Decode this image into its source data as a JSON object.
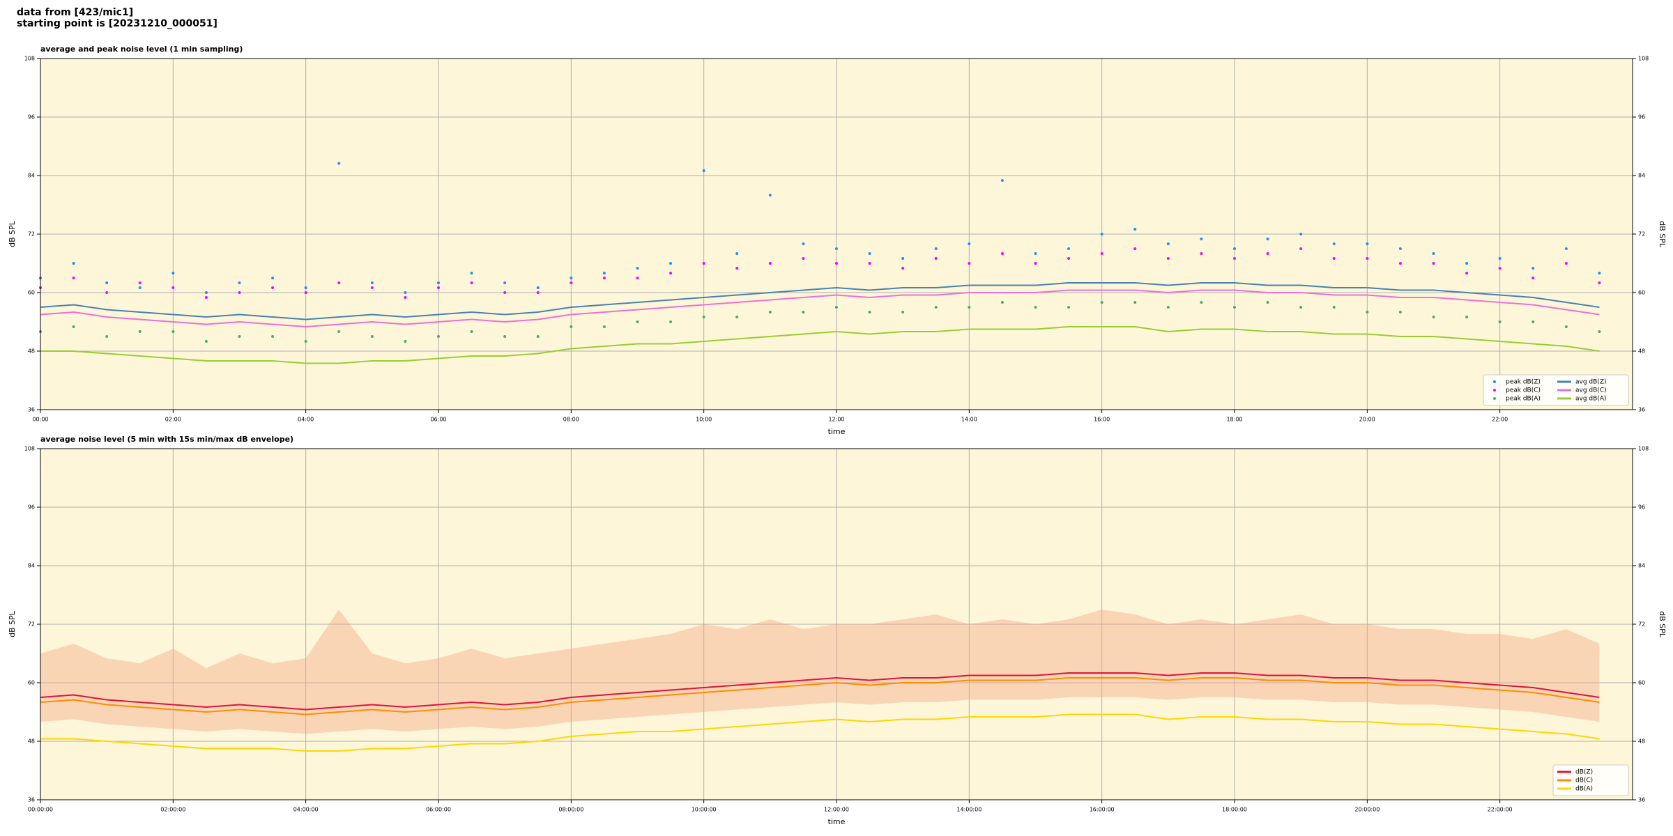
{
  "header": {
    "line1": "data from [423/mic1]",
    "line2": "starting point is [20231210_000051]"
  },
  "chart_data": [
    {
      "type": "line",
      "title": "average and peak noise level (1 min sampling)",
      "xlabel": "time",
      "ylabel": "dB SPL",
      "x": [
        0,
        0.5,
        1,
        1.5,
        2,
        2.5,
        3,
        3.5,
        4,
        4.5,
        5,
        5.5,
        6,
        6.5,
        7,
        7.5,
        8,
        8.5,
        9,
        9.5,
        10,
        10.5,
        11,
        11.5,
        12,
        12.5,
        13,
        13.5,
        14,
        14.5,
        15,
        15.5,
        16,
        16.5,
        17,
        17.5,
        18,
        18.5,
        19,
        19.5,
        20,
        20.5,
        21,
        21.5,
        22,
        22.5,
        23,
        23.5
      ],
      "xlim": [
        0,
        24
      ],
      "xticks": [
        {
          "value": 0,
          "label": "00:00"
        },
        {
          "value": 2,
          "label": "02:00"
        },
        {
          "value": 4,
          "label": "04:00"
        },
        {
          "value": 6,
          "label": "06:00"
        },
        {
          "value": 8,
          "label": "08:00"
        },
        {
          "value": 10,
          "label": "10:00"
        },
        {
          "value": 12,
          "label": "12:00"
        },
        {
          "value": 14,
          "label": "14:00"
        },
        {
          "value": 16,
          "label": "16:00"
        },
        {
          "value": 18,
          "label": "18:00"
        },
        {
          "value": 20,
          "label": "20:00"
        },
        {
          "value": 22,
          "label": "22:00"
        }
      ],
      "ylim": [
        36,
        108
      ],
      "yticks": [
        36,
        48,
        60,
        72,
        84,
        96,
        108
      ],
      "grid": true,
      "legend": "lower right",
      "legend_columns": 2,
      "series": [
        {
          "name": "peak dB(Z)",
          "color": "#1e90ff",
          "style": "points",
          "values": [
            63,
            66,
            62,
            61,
            64,
            60,
            62,
            63,
            61,
            86.5,
            62,
            60,
            62,
            64,
            62,
            61,
            63,
            64,
            65,
            66,
            85,
            68,
            80,
            70,
            69,
            68,
            67,
            69,
            70,
            83,
            68,
            69,
            72,
            73,
            70,
            71,
            69,
            71,
            72,
            70,
            70,
            69,
            68,
            66,
            67,
            65,
            69,
            64
          ]
        },
        {
          "name": "peak dB(C)",
          "color": "#ff00ff",
          "style": "points",
          "values": [
            61,
            63,
            60,
            62,
            61,
            59,
            60,
            61,
            60,
            62,
            61,
            59,
            61,
            62,
            60,
            60,
            62,
            63,
            63,
            64,
            66,
            65,
            66,
            67,
            66,
            66,
            65,
            67,
            66,
            68,
            66,
            67,
            68,
            69,
            67,
            68,
            67,
            68,
            69,
            67,
            67,
            66,
            66,
            64,
            65,
            63,
            66,
            62
          ]
        },
        {
          "name": "peak dB(A)",
          "color": "#3cb371",
          "style": "points",
          "values": [
            52,
            53,
            51,
            52,
            52,
            50,
            51,
            51,
            50,
            52,
            51,
            50,
            51,
            52,
            51,
            51,
            53,
            53,
            54,
            54,
            55,
            55,
            56,
            56,
            57,
            56,
            56,
            57,
            57,
            58,
            57,
            57,
            58,
            58,
            57,
            58,
            57,
            58,
            57,
            57,
            56,
            56,
            55,
            55,
            54,
            54,
            53,
            52
          ]
        },
        {
          "name": "avg dB(Z)",
          "color": "#4682b4",
          "values": [
            57,
            57.5,
            56.5,
            56,
            55.5,
            55,
            55.5,
            55,
            54.5,
            55,
            55.5,
            55,
            55.5,
            56,
            55.5,
            56,
            57,
            57.5,
            58,
            58.5,
            59,
            59.5,
            60,
            60.5,
            61,
            60.5,
            61,
            61,
            61.5,
            61.5,
            61.5,
            62,
            62,
            62,
            61.5,
            62,
            62,
            61.5,
            61.5,
            61,
            61,
            60.5,
            60.5,
            60,
            59.5,
            59,
            58,
            57
          ]
        },
        {
          "name": "avg dB(C)",
          "color": "#ee6fd8",
          "values": [
            55.5,
            56,
            55,
            54.5,
            54,
            53.5,
            54,
            53.5,
            53,
            53.5,
            54,
            53.5,
            54,
            54.5,
            54,
            54.5,
            55.5,
            56,
            56.5,
            57,
            57.5,
            58,
            58.5,
            59,
            59.5,
            59,
            59.5,
            59.5,
            60,
            60,
            60,
            60.5,
            60.5,
            60.5,
            60,
            60.5,
            60.5,
            60,
            60,
            59.5,
            59.5,
            59,
            59,
            58.5,
            58,
            57.5,
            56.5,
            55.5
          ]
        },
        {
          "name": "avg dB(A)",
          "color": "#9acd32",
          "values": [
            48,
            48,
            47.5,
            47,
            46.5,
            46,
            46,
            46,
            45.5,
            45.5,
            46,
            46,
            46.5,
            47,
            47,
            47.5,
            48.5,
            49,
            49.5,
            49.5,
            50,
            50.5,
            51,
            51.5,
            52,
            51.5,
            52,
            52,
            52.5,
            52.5,
            52.5,
            53,
            53,
            53,
            52,
            52.5,
            52.5,
            52,
            52,
            51.5,
            51.5,
            51,
            51,
            50.5,
            50,
            49.5,
            49,
            48
          ]
        }
      ]
    },
    {
      "type": "line",
      "title": "average noise level (5 min with 15s min/max dB envelope)",
      "xlabel": "time",
      "ylabel": "dB SPL",
      "x": [
        0,
        0.5,
        1,
        1.5,
        2,
        2.5,
        3,
        3.5,
        4,
        4.5,
        5,
        5.5,
        6,
        6.5,
        7,
        7.5,
        8,
        8.5,
        9,
        9.5,
        10,
        10.5,
        11,
        11.5,
        12,
        12.5,
        13,
        13.5,
        14,
        14.5,
        15,
        15.5,
        16,
        16.5,
        17,
        17.5,
        18,
        18.5,
        19,
        19.5,
        20,
        20.5,
        21,
        21.5,
        22,
        22.5,
        23,
        23.5
      ],
      "xlim": [
        0,
        24
      ],
      "xticks": [
        {
          "value": 0,
          "label": "00:00:00"
        },
        {
          "value": 2,
          "label": "02:00:00"
        },
        {
          "value": 4,
          "label": "04:00:00"
        },
        {
          "value": 6,
          "label": "06:00:00"
        },
        {
          "value": 8,
          "label": "08:00:00"
        },
        {
          "value": 10,
          "label": "10:00:00"
        },
        {
          "value": 12,
          "label": "12:00:00"
        },
        {
          "value": 14,
          "label": "14:00:00"
        },
        {
          "value": 16,
          "label": "16:00:00"
        },
        {
          "value": 18,
          "label": "18:00:00"
        },
        {
          "value": 20,
          "label": "20:00:00"
        },
        {
          "value": 22,
          "label": "22:00:00"
        }
      ],
      "ylim": [
        36,
        108
      ],
      "yticks": [
        36,
        48,
        60,
        72,
        84,
        96,
        108
      ],
      "grid": true,
      "legend": "lower right",
      "legend_columns": 1,
      "envelope": {
        "color": "#f4a582",
        "lower": [
          52,
          52.5,
          51.5,
          51,
          50.5,
          50,
          50.5,
          50,
          49.5,
          50,
          50.5,
          50,
          50.5,
          51,
          50.5,
          51,
          52,
          52.5,
          53,
          53.5,
          54,
          54.5,
          55,
          55.5,
          56,
          55.5,
          56,
          56,
          56.5,
          56.5,
          56.5,
          57,
          57,
          57,
          56.5,
          57,
          57,
          56.5,
          56.5,
          56,
          56,
          55.5,
          55.5,
          55,
          54.5,
          54,
          53,
          52
        ],
        "upper": [
          66,
          68,
          65,
          64,
          67,
          63,
          66,
          64,
          65,
          75,
          66,
          64,
          65,
          67,
          65,
          66,
          67,
          68,
          69,
          70,
          72,
          71,
          73,
          71,
          72,
          72,
          73,
          74,
          72,
          73,
          72,
          73,
          75,
          74,
          72,
          73,
          72,
          73,
          74,
          72,
          72,
          71,
          71,
          70,
          70,
          69,
          71,
          68
        ]
      },
      "series": [
        {
          "name": "dB(Z)",
          "color": "#dc143c",
          "values": [
            57,
            57.5,
            56.5,
            56,
            55.5,
            55,
            55.5,
            55,
            54.5,
            55,
            55.5,
            55,
            55.5,
            56,
            55.5,
            56,
            57,
            57.5,
            58,
            58.5,
            59,
            59.5,
            60,
            60.5,
            61,
            60.5,
            61,
            61,
            61.5,
            61.5,
            61.5,
            62,
            62,
            62,
            61.5,
            62,
            62,
            61.5,
            61.5,
            61,
            61,
            60.5,
            60.5,
            60,
            59.5,
            59,
            58,
            57
          ]
        },
        {
          "name": "dB(C)",
          "color": "#ff8c00",
          "values": [
            56,
            56.5,
            55.5,
            55,
            54.5,
            54,
            54.5,
            54,
            53.5,
            54,
            54.5,
            54,
            54.5,
            55,
            54.5,
            55,
            56,
            56.5,
            57,
            57.5,
            58,
            58.5,
            59,
            59.5,
            60,
            59.5,
            60,
            60,
            60.5,
            60.5,
            60.5,
            61,
            61,
            61,
            60.5,
            61,
            61,
            60.5,
            60.5,
            60,
            60,
            59.5,
            59.5,
            59,
            58.5,
            58,
            57,
            56
          ]
        },
        {
          "name": "dB(A)",
          "color": "#ffd700",
          "values": [
            48.5,
            48.5,
            48,
            47.5,
            47,
            46.5,
            46.5,
            46.5,
            46,
            46,
            46.5,
            46.5,
            47,
            47.5,
            47.5,
            48,
            49,
            49.5,
            50,
            50,
            50.5,
            51,
            51.5,
            52,
            52.5,
            52,
            52.5,
            52.5,
            53,
            53,
            53,
            53.5,
            53.5,
            53.5,
            52.5,
            53,
            53,
            52.5,
            52.5,
            52,
            52,
            51.5,
            51.5,
            51,
            50.5,
            50,
            49.5,
            48.5
          ]
        }
      ]
    }
  ]
}
